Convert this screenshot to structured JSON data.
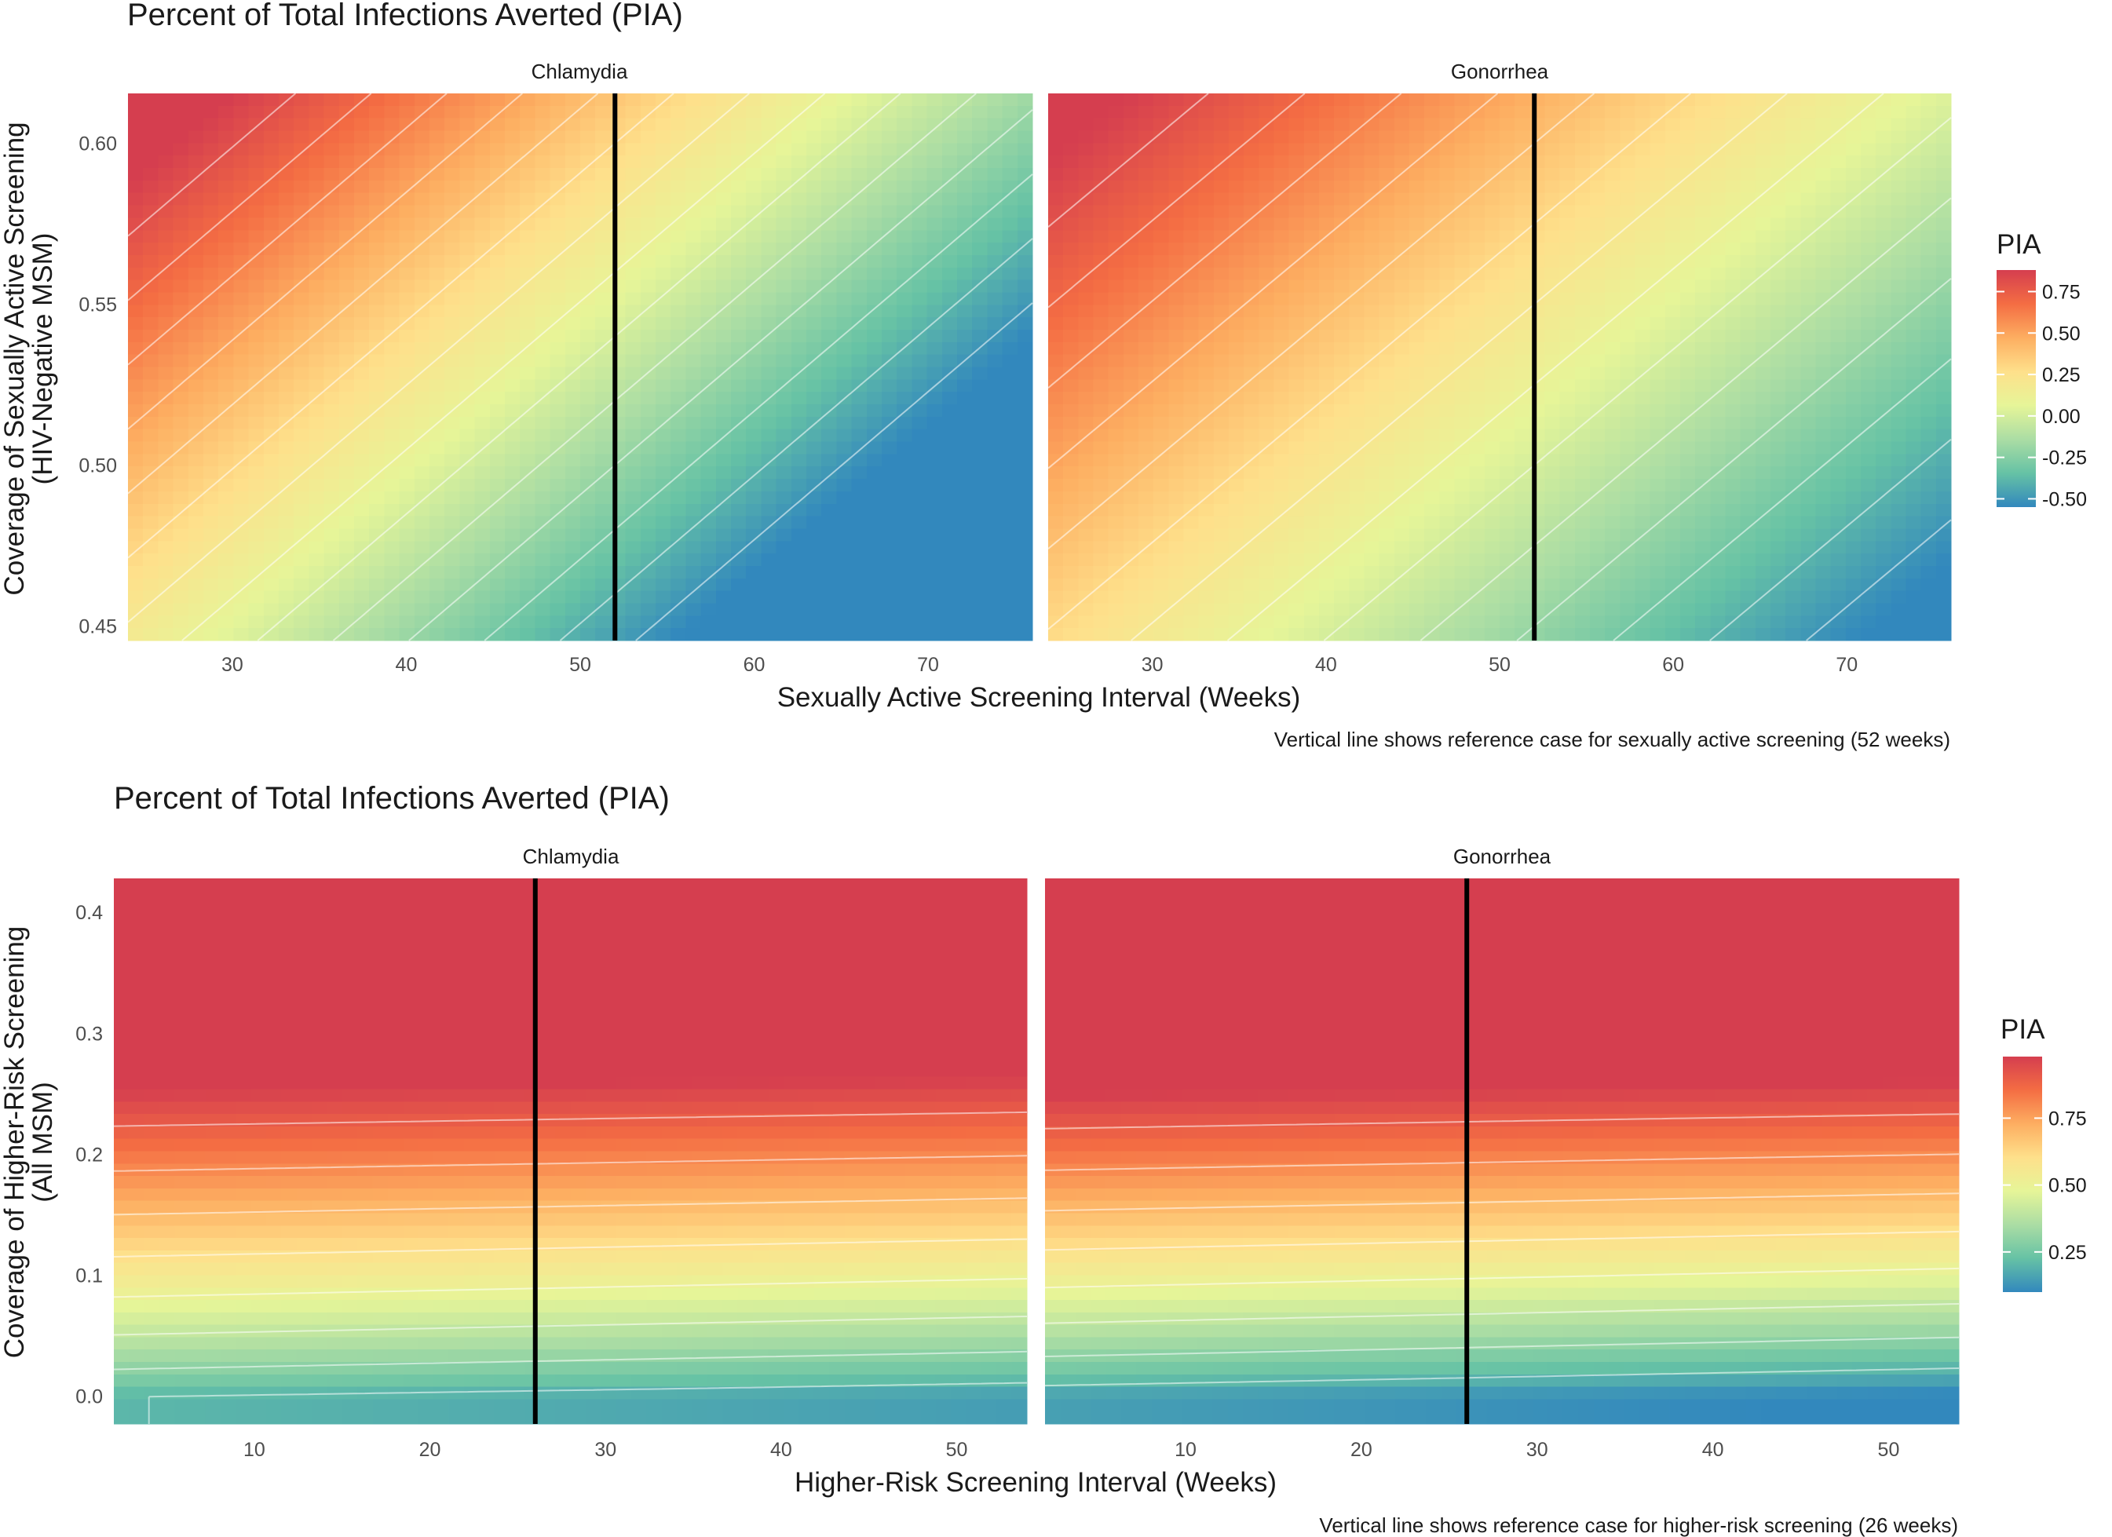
{
  "chart_data": [
    {
      "type": "heatmap",
      "title": "Percent of Total Infections Averted (PIA)",
      "facets": [
        "Chlamydia",
        "Gonorrhea"
      ],
      "xlabel": "Sexually Active Screening Interval (Weeks)",
      "ylabel": [
        "Coverage of Sexually Active Screening",
        "(HIV-Negative MSM)"
      ],
      "xlim": [
        24,
        76
      ],
      "ylim": [
        0.4455,
        0.6155
      ],
      "x_ticks": [
        30,
        40,
        50,
        60,
        70
      ],
      "y_ticks": [
        0.45,
        0.5,
        0.55,
        0.6
      ],
      "y_tick_labels": [
        "0.45",
        "0.50",
        "0.55",
        "0.60"
      ],
      "reference_x": 52,
      "caption": "Vertical line shows reference case for sexually active screening (52 weeks)",
      "legend": {
        "title": "PIA",
        "position": "right",
        "range": [
          -0.55,
          0.88
        ],
        "ticks": [
          0.75,
          0.5,
          0.25,
          0.0,
          -0.25,
          -0.5
        ],
        "tick_labels": [
          "0.75",
          "0.50",
          "0.25",
          "0.00",
          "-0.25",
          "-0.50"
        ]
      },
      "colors": [
        "#3288bd",
        "#66c2a5",
        "#abdda4",
        "#e6f598",
        "#fee08b",
        "#fdae61",
        "#f46d43",
        "#d53e4f"
      ],
      "contour_levels": [
        -0.5,
        -0.4,
        -0.3,
        -0.2,
        -0.1,
        0.0,
        0.1,
        0.2,
        0.3,
        0.4,
        0.5,
        0.6,
        0.7,
        0.8
      ],
      "value_model": [
        {
          "facet": "Chlamydia",
          "intercept": -0.05,
          "x_coef": -0.023,
          "x_ref": 52,
          "y_coef": 5.0,
          "y_ref": 0.53
        },
        {
          "facet": "Gonorrhea",
          "intercept": 0.12,
          "x_coef": -0.018,
          "x_ref": 52,
          "y_coef": 4.0,
          "y_ref": 0.53
        }
      ]
    },
    {
      "type": "heatmap",
      "title": "Percent of Total Infections Averted (PIA)",
      "facets": [
        "Chlamydia",
        "Gonorrhea"
      ],
      "xlabel": "Higher-Risk Screening Interval (Weeks)",
      "ylabel": [
        "Coverage of Higher-Risk Screening",
        "(All MSM)"
      ],
      "xlim": [
        2,
        54
      ],
      "ylim": [
        -0.023,
        0.428
      ],
      "x_ticks": [
        10,
        20,
        30,
        40,
        50
      ],
      "y_ticks": [
        0.0,
        0.1,
        0.2,
        0.3,
        0.4
      ],
      "y_tick_labels": [
        "0.0",
        "0.1",
        "0.2",
        "0.3",
        "0.4"
      ],
      "reference_x": 26,
      "caption": "Vertical line shows reference case for higher-risk screening (26 weeks)",
      "legend": {
        "title": "PIA",
        "position": "right",
        "range": [
          0.1,
          0.98
        ],
        "ticks": [
          0.75,
          0.5,
          0.25
        ],
        "tick_labels": [
          "0.75",
          "0.50",
          "0.25"
        ]
      },
      "colors": [
        "#3288bd",
        "#66c2a5",
        "#abdda4",
        "#e6f598",
        "#fee08b",
        "#fdae61",
        "#f46d43",
        "#d53e4f"
      ],
      "contour_levels": [
        0.2,
        0.3,
        0.4,
        0.5,
        0.6,
        0.7,
        0.8,
        0.9
      ],
      "value_model": [
        {
          "facet": "Chlamydia",
          "base": 0.2,
          "slope": 2.5,
          "x_coef": 0.0022
        },
        {
          "facet": "Gonorrhea",
          "base": 0.15,
          "slope": 2.7,
          "x_coef": 0.0025
        }
      ]
    }
  ]
}
